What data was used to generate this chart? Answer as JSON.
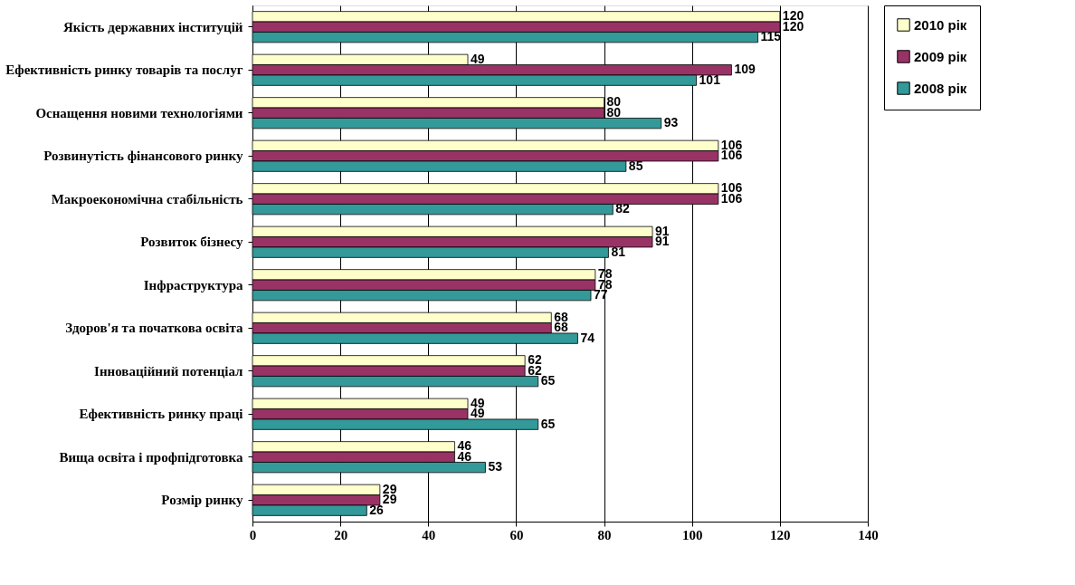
{
  "chart_data": {
    "type": "bar",
    "orientation": "horizontal",
    "categories": [
      "Якість державних інституцій",
      "Ефективність ринку товарів та послуг",
      "Оснащення новими технологіями",
      "Розвинутість фінансового ринку",
      "Макроекономічна стабільність",
      "Розвиток бізнесу",
      "Інфраструктура",
      "Здоров'я та початкова освіта",
      "Інноваційний потенціал",
      "Ефективність ринку праці",
      "Вища освіта і профпідготовка",
      "Розмір ринку"
    ],
    "series": [
      {
        "name": "2010 рік",
        "color": "#ffffcc",
        "values": [
          120,
          49,
          80,
          106,
          106,
          91,
          78,
          68,
          62,
          49,
          46,
          29
        ]
      },
      {
        "name": "2009 рік",
        "color": "#993366",
        "values": [
          120,
          109,
          80,
          106,
          106,
          91,
          78,
          68,
          62,
          49,
          46,
          29
        ]
      },
      {
        "name": "2008 рік",
        "color": "#339999",
        "values": [
          115,
          101,
          93,
          85,
          82,
          81,
          77,
          74,
          65,
          65,
          53,
          26
        ]
      }
    ],
    "xlim": [
      0,
      140
    ],
    "xticks": [
      0,
      20,
      40,
      60,
      80,
      100,
      120,
      140
    ],
    "grid": "x",
    "legend": "right",
    "data_labels": true
  }
}
